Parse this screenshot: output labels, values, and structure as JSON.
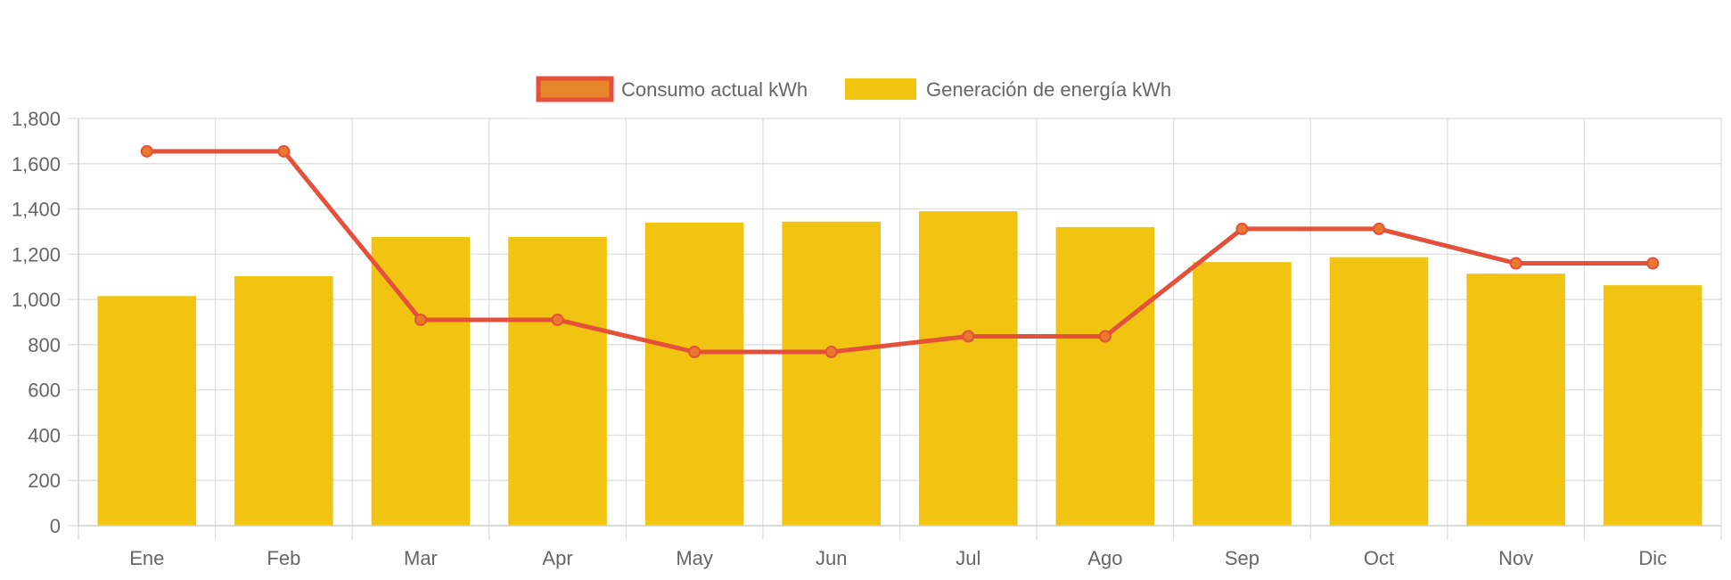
{
  "chart_data": {
    "type": "bar",
    "categories": [
      "Ene",
      "Feb",
      "Mar",
      "Apr",
      "May",
      "Jun",
      "Jul",
      "Ago",
      "Sep",
      "Oct",
      "Nov",
      "Dic"
    ],
    "series": [
      {
        "name": "Consumo actual kWh",
        "type": "line",
        "values": [
          1655,
          1655,
          910,
          910,
          768,
          768,
          837,
          837,
          1312,
          1312,
          1160,
          1160
        ]
      },
      {
        "name": "Generación de energía kWh",
        "type": "bar",
        "values": [
          1015,
          1103,
          1276,
          1276,
          1340,
          1344,
          1390,
          1320,
          1165,
          1187,
          1114,
          1063
        ]
      }
    ],
    "ylim": [
      0,
      1800
    ],
    "yticks": [
      "0",
      "200",
      "400",
      "600",
      "800",
      "1,000",
      "1,200",
      "1,400",
      "1,600",
      "1,800"
    ],
    "ytick_values": [
      0,
      200,
      400,
      600,
      800,
      1000,
      1200,
      1400,
      1600,
      1800
    ],
    "grid": true,
    "legend_position": "top-center",
    "colors": {
      "bar": "#f0c410",
      "line": "#e4503a",
      "point_fill": "#e97a2c",
      "legend_line_fill": "#e8862a",
      "grid": "#dcdcdc",
      "text": "#666666"
    }
  }
}
